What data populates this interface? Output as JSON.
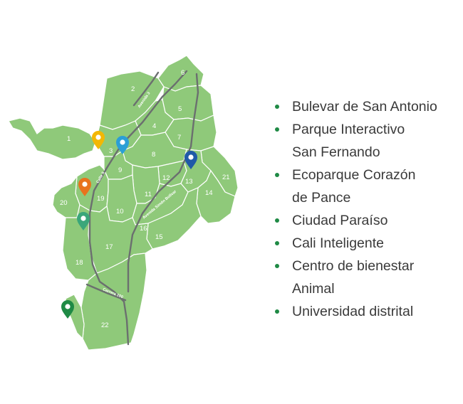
{
  "map": {
    "districts": [
      "1",
      "2",
      "3",
      "4",
      "5",
      "6",
      "7",
      "8",
      "9",
      "10",
      "11",
      "12",
      "13",
      "14",
      "15",
      "16",
      "17",
      "18",
      "19",
      "20",
      "21",
      "22"
    ],
    "roads": [
      "Avenida 3",
      "Calle 5",
      "Avenida Simón Bolívar",
      "Carrera 100"
    ],
    "pins": [
      {
        "id": "yellow",
        "color": "#f2b705"
      },
      {
        "id": "blue",
        "color": "#2b9fd6"
      },
      {
        "id": "darkblue",
        "color": "#1f5aa8"
      },
      {
        "id": "orange",
        "color": "#e8731e"
      },
      {
        "id": "teal",
        "color": "#3aa67a"
      },
      {
        "id": "green",
        "color": "#1f8a45"
      }
    ],
    "colors": {
      "district": "#8fc97a",
      "road": "#6b6f6f"
    }
  },
  "legend": {
    "items": [
      {
        "line1": "Bulevar de San Antonio",
        "line2": ""
      },
      {
        "line1": "Parque Interactivo",
        "line2": "San Fernando"
      },
      {
        "line1": "Ecoparque Corazón",
        "line2": "de Pance"
      },
      {
        "line1": "Ciudad Paraíso",
        "line2": ""
      },
      {
        "line1": "Cali Inteligente",
        "line2": ""
      },
      {
        "line1": "Centro de bienestar",
        "line2": "Animal"
      },
      {
        "line1": "Universidad distrital",
        "line2": ""
      }
    ],
    "bullet_color": "#1f8a45"
  }
}
